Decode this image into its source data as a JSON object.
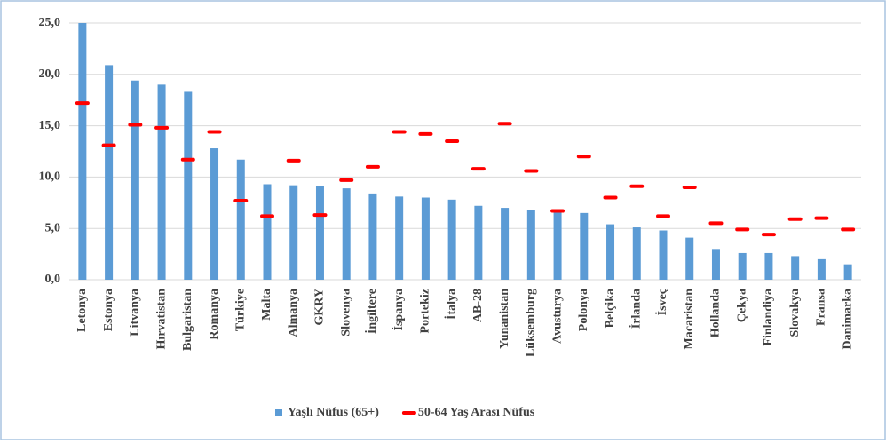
{
  "chart_data": {
    "type": "bar_dash",
    "categories": [
      "Letonya",
      "Estonya",
      "Litvanya",
      "Hırvatistan",
      "Bulgaristan",
      "Romanya",
      "Türkiye",
      "Malta",
      "Almanya",
      "GKRY",
      "Slovenya",
      "İngiltere",
      "İspanya",
      "Portekiz",
      "İtalya",
      "AB-28",
      "Yunanistan",
      "Lüksemburg",
      "Avusturya",
      "Polonya",
      "Belçika",
      "İrlanda",
      "İsveç",
      "Macaristan",
      "Hollanda",
      "Çekya",
      "Finlandiya",
      "Slovakya",
      "Fransa",
      "Danimarka"
    ],
    "series": [
      {
        "name": "Yaşlı Nüfus (65+)",
        "color": "#5b9bd5",
        "mark": "bar",
        "values": [
          25.0,
          20.9,
          19.4,
          19.0,
          18.3,
          12.8,
          11.7,
          9.3,
          9.2,
          9.1,
          8.9,
          8.4,
          8.1,
          8.0,
          7.8,
          7.2,
          7.0,
          6.8,
          6.6,
          6.5,
          5.4,
          5.1,
          4.8,
          4.1,
          3.0,
          2.6,
          2.6,
          2.3,
          2.0,
          1.5
        ]
      },
      {
        "name": "50-64 Yaş Arası Nüfus",
        "color": "#ff0000",
        "mark": "dash",
        "values": [
          17.2,
          13.1,
          15.1,
          14.8,
          11.7,
          14.4,
          7.7,
          6.2,
          11.6,
          6.3,
          9.7,
          11.0,
          14.4,
          14.2,
          13.5,
          10.8,
          15.2,
          10.6,
          6.7,
          12.0,
          8.0,
          9.1,
          6.2,
          9.0,
          5.5,
          4.9,
          4.4,
          5.9,
          6.0,
          4.9
        ]
      }
    ],
    "ylim": [
      0,
      25
    ],
    "yticks": [
      {
        "value": 0,
        "label": "0,0"
      },
      {
        "value": 5,
        "label": "5,0"
      },
      {
        "value": 10,
        "label": "10,0"
      },
      {
        "value": 15,
        "label": "15,0"
      },
      {
        "value": 20,
        "label": "20,0"
      },
      {
        "value": 25,
        "label": "25,0"
      }
    ],
    "grid": true,
    "legend": "bottom"
  }
}
